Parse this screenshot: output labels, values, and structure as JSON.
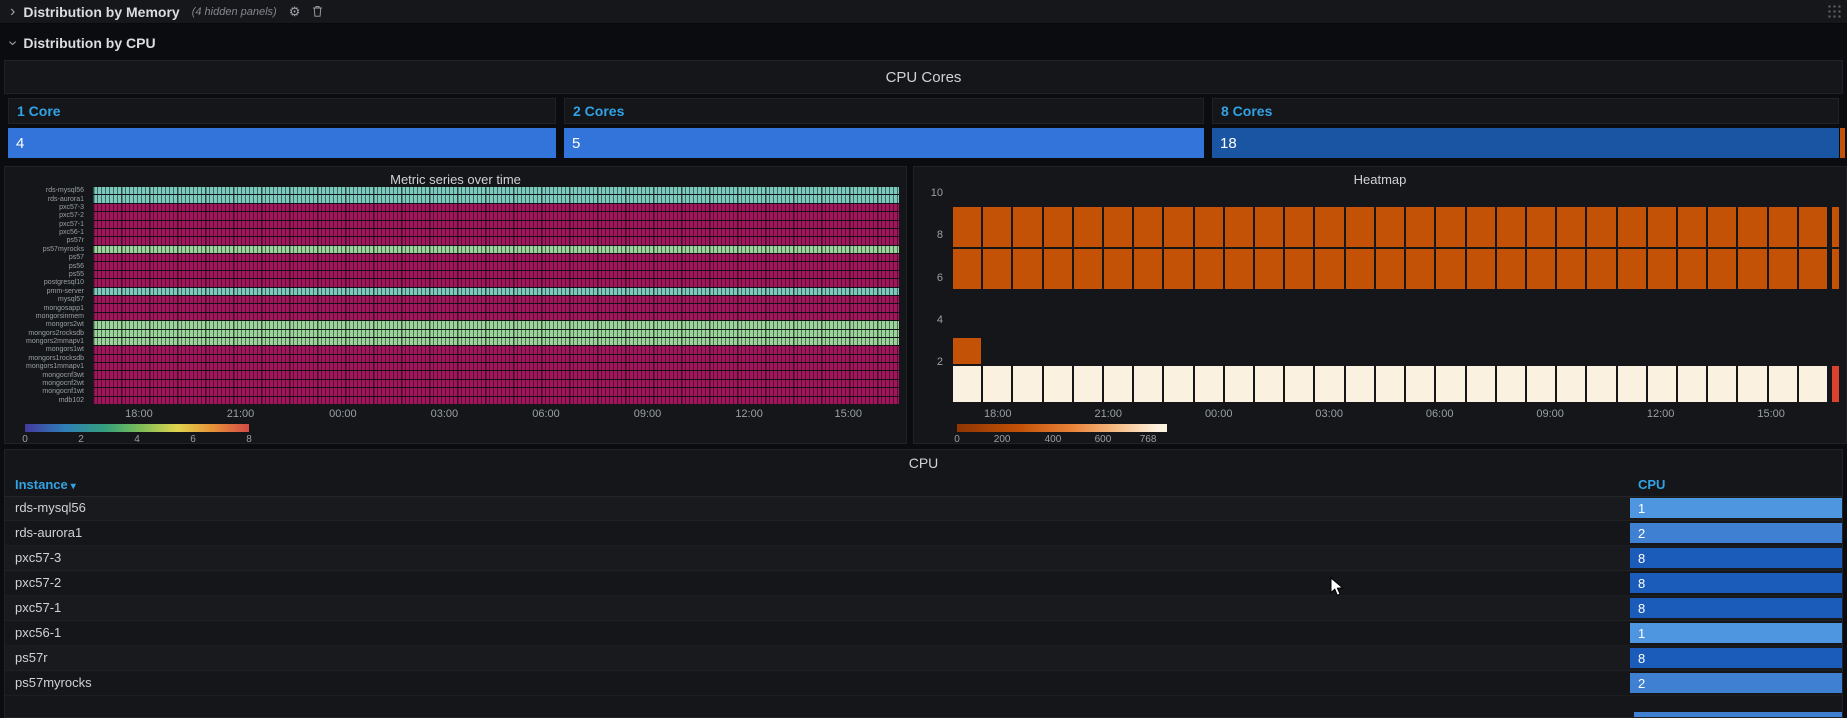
{
  "rows": {
    "memory": {
      "title": "Distribution by Memory",
      "hint": "(4 hidden panels)"
    },
    "cpu": {
      "title": "Distribution by CPU"
    }
  },
  "icons": {
    "gear": "⚙",
    "chevron": "›",
    "sort_desc": "▾"
  },
  "cpu_cores": {
    "title": "CPU Cores",
    "stats": [
      {
        "label": "1 Core",
        "value": "4",
        "color": "#3274d9"
      },
      {
        "label": "2 Cores",
        "value": "5",
        "color": "#3274d9"
      },
      {
        "label": "8 Cores",
        "value": "18",
        "color": "#1a55a3"
      }
    ],
    "endcap_color": "#c35207"
  },
  "chart_data": [
    {
      "type": "heatmap",
      "subtype": "status-timeline",
      "title": "Metric series over time",
      "x_ticks": [
        "18:00",
        "21:00",
        "00:00",
        "03:00",
        "06:00",
        "09:00",
        "12:00",
        "15:00"
      ],
      "series": [
        {
          "name": "rds-mysql56",
          "color": "#7cc9bd"
        },
        {
          "name": "rds-aurora1",
          "color": "#7cc9bd"
        },
        {
          "name": "pxc57-3",
          "color": "#a3155c"
        },
        {
          "name": "pxc57-2",
          "color": "#a3155c"
        },
        {
          "name": "pxc57-1",
          "color": "#a3155c"
        },
        {
          "name": "pxc56-1",
          "color": "#a3155c"
        },
        {
          "name": "ps57r",
          "color": "#a3155c"
        },
        {
          "name": "ps57myrocks",
          "color": "#9bd49b"
        },
        {
          "name": "ps57",
          "color": "#a3155c"
        },
        {
          "name": "ps56",
          "color": "#a3155c"
        },
        {
          "name": "ps55",
          "color": "#a3155c"
        },
        {
          "name": "postgresql10",
          "color": "#a3155c"
        },
        {
          "name": "pmm-server",
          "color": "#7cc9bd"
        },
        {
          "name": "mysql57",
          "color": "#a3155c"
        },
        {
          "name": "mongosapp1",
          "color": "#a3155c"
        },
        {
          "name": "mongorsinmem",
          "color": "#a3155c"
        },
        {
          "name": "mongors2wt",
          "color": "#9bd49b"
        },
        {
          "name": "mongors2rocksdb",
          "color": "#9bd49b"
        },
        {
          "name": "mongors2mmapv1",
          "color": "#9bd49b"
        },
        {
          "name": "mongors1wt",
          "color": "#a3155c"
        },
        {
          "name": "mongors1rocksdb",
          "color": "#a3155c"
        },
        {
          "name": "mongors1mmapv1",
          "color": "#a3155c"
        },
        {
          "name": "mongocnf3wt",
          "color": "#a3155c"
        },
        {
          "name": "mongocnf2wt",
          "color": "#a3155c"
        },
        {
          "name": "mongocnf1wt",
          "color": "#a3155c"
        },
        {
          "name": "mdb102",
          "color": "#a3155c"
        }
      ],
      "legend": {
        "ticks": [
          "0",
          "2",
          "4",
          "6",
          "8"
        ]
      }
    },
    {
      "type": "heatmap",
      "title": "Heatmap",
      "x_ticks": [
        "18:00",
        "21:00",
        "00:00",
        "03:00",
        "06:00",
        "09:00",
        "12:00",
        "15:00"
      ],
      "y_ticks": [
        "10",
        "8",
        "6",
        "4",
        "2"
      ],
      "y_max": 10.3,
      "columns": 29,
      "buckets": [
        {
          "y0": 7.35,
          "y1": 9.35,
          "color": "#c35207",
          "cols": "all",
          "edge": "#c35207"
        },
        {
          "y0": 5.35,
          "y1": 7.35,
          "color": "#c35207",
          "cols": "all",
          "edge": "#c35207"
        },
        {
          "y0": 1.8,
          "y1": 3.15,
          "color": "#c35207",
          "cols": [
            0
          ]
        },
        {
          "y0": 0,
          "y1": 1.8,
          "color": "#faf1e0",
          "cols": "all",
          "edge": "#d9422f"
        }
      ],
      "legend": {
        "ticks": [
          "0",
          "200",
          "400",
          "600",
          "768"
        ]
      }
    }
  ],
  "table": {
    "title": "CPU",
    "columns": {
      "instance": "Instance",
      "cpu": "CPU"
    },
    "rows": [
      {
        "instance": "rds-mysql56",
        "cpu": "1",
        "color": "#4e96e0"
      },
      {
        "instance": "rds-aurora1",
        "cpu": "2",
        "color": "#3f80d2"
      },
      {
        "instance": "pxc57-3",
        "cpu": "8",
        "color": "#1b5cba"
      },
      {
        "instance": "pxc57-2",
        "cpu": "8",
        "color": "#1b5cba"
      },
      {
        "instance": "pxc57-1",
        "cpu": "8",
        "color": "#1b5cba"
      },
      {
        "instance": "pxc56-1",
        "cpu": "1",
        "color": "#4e96e0"
      },
      {
        "instance": "ps57r",
        "cpu": "8",
        "color": "#1b5cba"
      },
      {
        "instance": "ps57myrocks",
        "cpu": "2",
        "color": "#3f80d2"
      }
    ],
    "partial_bar_color": "#3f80d2"
  }
}
